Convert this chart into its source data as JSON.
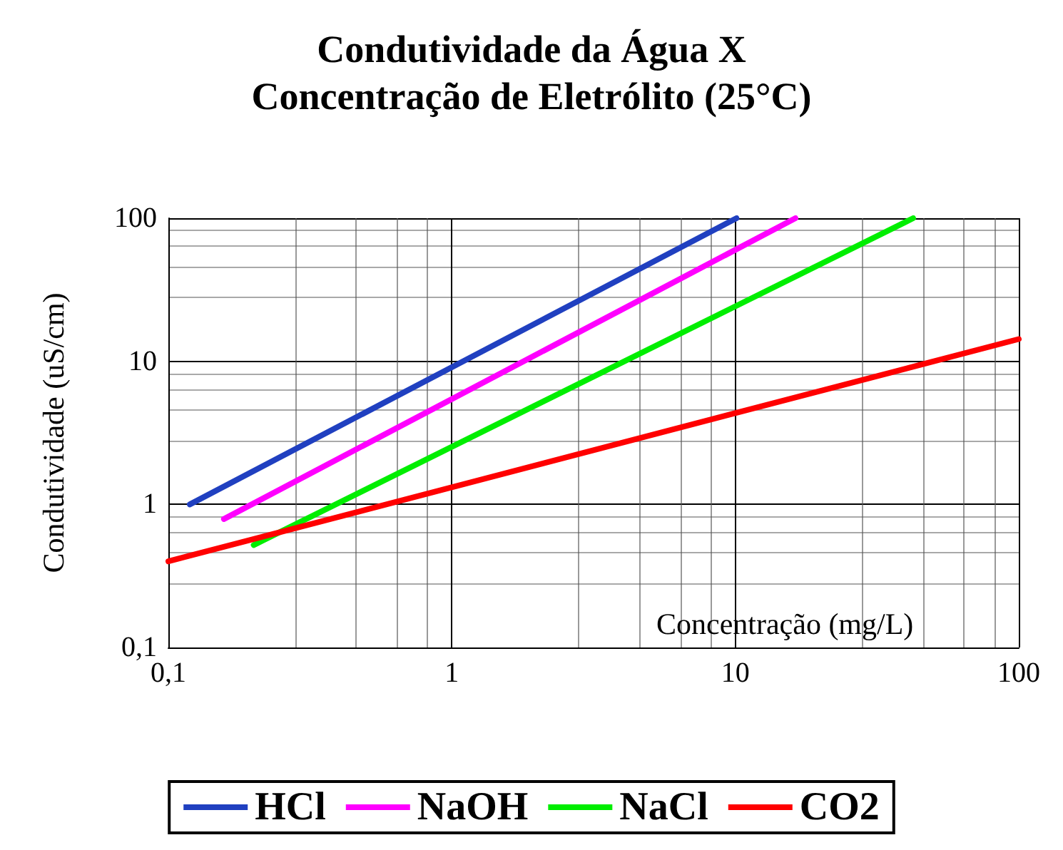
{
  "chart_data": {
    "type": "line",
    "title": "Condutividade da Água X",
    "subtitle": "Concentração de Eletrólito (25°C)",
    "xlabel": "Concentração (mg/L)",
    "ylabel": "Condutividade (uS/cm)",
    "log": "xy",
    "grid": true,
    "legend": "bottom",
    "xlim": [
      0.1,
      100
    ],
    "xticks": [
      {
        "value": 0.1,
        "label": "0,1"
      },
      1,
      10,
      100
    ],
    "ylim": [
      0.1,
      100
    ],
    "yticks": [
      {
        "value": 0.1,
        "label": "0,1"
      },
      1,
      10,
      100
    ],
    "series": [
      {
        "name": "HCl",
        "color": "#2040c0",
        "x": [
          0.119,
          10.1
        ],
        "values": [
          1.0,
          100
        ]
      },
      {
        "name": "NaOH",
        "color": "#ff00ff",
        "x": [
          0.157,
          16.3
        ],
        "values": [
          0.79,
          100
        ]
      },
      {
        "name": "NaCl",
        "color": "#00ee00",
        "x": [
          0.2,
          42.4
        ],
        "values": [
          0.52,
          100
        ]
      },
      {
        "name": "CO2",
        "color": "#ff0000",
        "x": [
          0.1,
          100
        ],
        "values": [
          0.4,
          14.3
        ]
      }
    ]
  }
}
